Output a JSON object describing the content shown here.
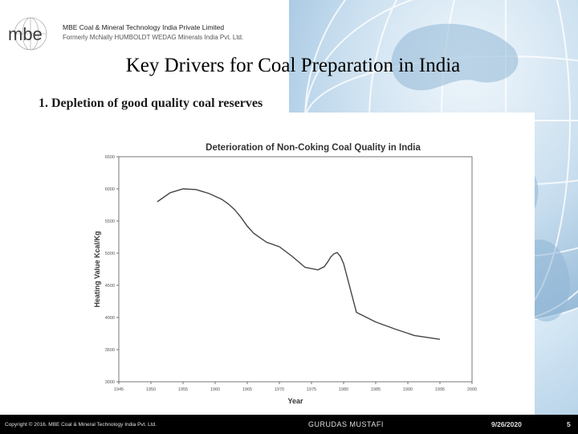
{
  "header": {
    "logo_text": "mbe",
    "company_name": "MBE Coal & Mineral Technology India Private Limited",
    "former_name": "Formerly McNally HUMBOLDT WEDAG Minerals India Pvt. Ltd."
  },
  "slide": {
    "title": "Key Drivers for Coal Preparation in India",
    "bullet": "1.  Depletion of good quality coal reserves"
  },
  "chart_data": {
    "type": "line",
    "title": "Deterioration of Non-Coking Coal Quality in India",
    "xlabel": "Year",
    "ylabel": "Heating Value Kcal/Kg",
    "xlim": [
      1945,
      2000
    ],
    "ylim": [
      3000,
      6500
    ],
    "x_ticks": [
      1945,
      1950,
      1955,
      1960,
      1965,
      1970,
      1975,
      1980,
      1985,
      1990,
      1995,
      2000
    ],
    "y_ticks": [
      3000,
      3500,
      4000,
      4500,
      5000,
      5500,
      6000,
      6500
    ],
    "grid": false,
    "legend": "none",
    "line_color": "#444444",
    "series": [
      {
        "x": [
          1951,
          1953,
          1955,
          1957,
          1959,
          1961,
          1962,
          1963,
          1964,
          1965,
          1966,
          1968,
          1970,
          1972,
          1974,
          1976,
          1977,
          1977.5,
          1978,
          1978.5,
          1979,
          1979.5,
          1980,
          1982,
          1985,
          1988,
          1991,
          1995
        ],
        "y": [
          5800,
          5940,
          6000,
          5990,
          5930,
          5840,
          5770,
          5680,
          5560,
          5420,
          5310,
          5170,
          5100,
          4950,
          4780,
          4740,
          4790,
          4860,
          4940,
          4990,
          5010,
          4950,
          4840,
          4080,
          3930,
          3820,
          3720,
          3660
        ]
      }
    ]
  },
  "footer": {
    "copyright": "Copyright © 2016. MBE Coal & Mineral Technology India Pvt. Ltd.",
    "author": "GURUDAS MUSTAFI",
    "date": "9/26/2020",
    "page": "5"
  }
}
